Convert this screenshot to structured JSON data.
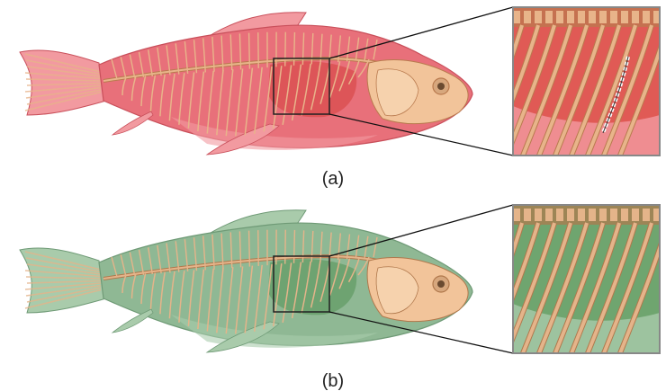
{
  "panels": [
    {
      "caption": "(a)",
      "render_colors": {
        "body_fill": "#e8707a",
        "body_light": "#f29aa0",
        "body_dark": "#c9505b",
        "inner_fill": "#d94a4a",
        "bone": "#e8b48a",
        "bone_dark": "#b97a4e",
        "zoom_bg": "#e05a55"
      },
      "zoom_marker": true
    },
    {
      "caption": "(b)",
      "render_colors": {
        "body_fill": "#8fb894",
        "body_light": "#a9cbab",
        "body_dark": "#6f9a76",
        "inner_fill": "#5f9a62",
        "bone": "#e4b48a",
        "bone_dark": "#b0784c",
        "zoom_bg": "#6fa56f"
      },
      "zoom_marker": false
    }
  ],
  "colors": {
    "frame": "#222222",
    "leader_line": "#111111",
    "zoom_border": "#888888"
  }
}
